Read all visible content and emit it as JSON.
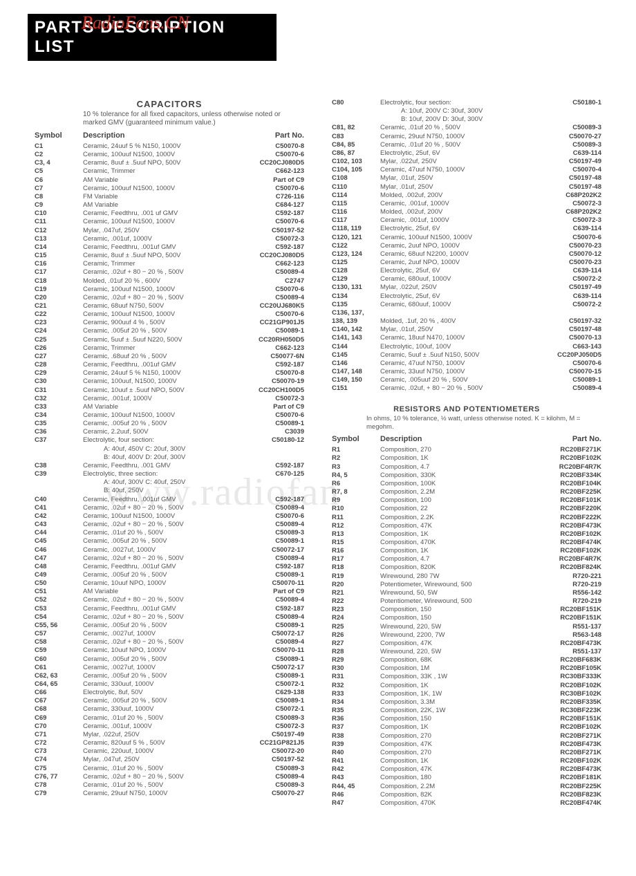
{
  "banner": "PARTS DESCRIPTION LIST",
  "overlay": "RadioFans.CN",
  "watermark": "www.radiofan",
  "capacitors": {
    "heading": "CAPACITORS",
    "note": "10 % tolerance for all fixed capacitors, unless otherwise noted or marked GMV (guaranteed minimum value.)",
    "cols": {
      "sym": "Symbol",
      "desc": "Description",
      "pn": "Part No."
    },
    "left": [
      {
        "s": "C1",
        "d": "Ceramic, 24uuf 5 % N150, 1000V",
        "p": "C50070-8"
      },
      {
        "s": "C2",
        "d": "Ceramic, 100uuf N1500, 1000V",
        "p": "C50070-6"
      },
      {
        "s": "C3, 4",
        "d": "Ceramic, 8uuf ± .5uuf NPO, 500V",
        "p": "CC20CJ080D5"
      },
      {
        "s": "C5",
        "d": "Ceramic, Trimmer",
        "p": "C662-123"
      },
      {
        "s": "C6",
        "d": "AM Variable",
        "p": "Part of C9"
      },
      {
        "s": "C7",
        "d": "Ceramic, 100uuf N1500, 1000V",
        "p": "C50070-6"
      },
      {
        "s": "C8",
        "d": "FM Variable",
        "p": "C726-116"
      },
      {
        "s": "C9",
        "d": "AM Variable",
        "p": "C684-127"
      },
      {
        "s": "C10",
        "d": "Ceramic, Feedthru, .001 uf GMV",
        "p": "C592-187"
      },
      {
        "s": "C11",
        "d": "Ceramic, 100uuf N1500, 1000V",
        "p": "C50070-6"
      },
      {
        "s": "C12",
        "d": "Mylar, .047uf, 250V",
        "p": "C50197-52"
      },
      {
        "s": "C13",
        "d": "Ceramic, .001uf, 1000V",
        "p": "C50072-3"
      },
      {
        "s": "C14",
        "d": "Ceramic, Feedthru, .001uf GMV",
        "p": "C592-187"
      },
      {
        "s": "C15",
        "d": "Ceramic, 8uuf ± .5uuf NPO, 500V",
        "p": "CC20CJ080D5"
      },
      {
        "s": "C16",
        "d": "Ceramic, Trimmer",
        "p": "C662-123"
      },
      {
        "s": "C17",
        "d": "Ceramic, .02uf + 80 − 20 % , 500V",
        "p": "C50089-4"
      },
      {
        "s": "C18",
        "d": "Molded, .01uf 20 % , 600V",
        "p": "C2747"
      },
      {
        "s": "C19",
        "d": "Ceramic, 100uuf N1500, 1000V",
        "p": "C50070-6"
      },
      {
        "s": "C20",
        "d": "Ceramic, .02uf + 80 − 20 % , 500V",
        "p": "C50089-4"
      },
      {
        "s": "C21",
        "d": "Ceramic, 68uuf N750, 500V",
        "p": "CC20UJ680K5"
      },
      {
        "s": "C22",
        "d": "Ceramic, 100uuf N1500, 1000V",
        "p": "C50070-6"
      },
      {
        "s": "C23",
        "d": "Ceramic, 900uuf 4 % , 500V",
        "p": "CC21GP901J5"
      },
      {
        "s": "C24",
        "d": "Ceramic, .005uf 20 % , 500V",
        "p": "C50089-1"
      },
      {
        "s": "C25",
        "d": "Ceramic, 5uuf ± .5uuf N220, 500V",
        "p": "CC20RH050D5"
      },
      {
        "s": "C26",
        "d": "Ceramic, Trimmer",
        "p": "C662-123"
      },
      {
        "s": "C27",
        "d": "Ceramic, .68uuf 20 % , 500V",
        "p": "C50077-6N"
      },
      {
        "s": "C28",
        "d": "Ceramic, Feedthru, .001uf GMV",
        "p": "C592-187"
      },
      {
        "s": "C29",
        "d": "Ceramic, 24uuf 5 % N150, 1000V",
        "p": "C50070-8"
      },
      {
        "s": "C30",
        "d": "Ceramic, 100uuf, N1500, 1000V",
        "p": "C50070-19"
      },
      {
        "s": "C31",
        "d": "Ceramic, 10uuf ± .5uuf NPO, 500V",
        "p": "CC20CH100D5"
      },
      {
        "s": "C32",
        "d": "Ceramic, .001uf, 1000V",
        "p": "C50072-3"
      },
      {
        "s": "C33",
        "d": "AM Variable",
        "p": "Part of C9"
      },
      {
        "s": "C34",
        "d": "Ceramic, 100uuf N1500, 1000V",
        "p": "C50070-6"
      },
      {
        "s": "C35",
        "d": "Ceramic, .005uf 20 % , 500V",
        "p": "C50089-1"
      },
      {
        "s": "C36",
        "d": "Ceramic, 2.2uuf, 500V",
        "p": "C3039"
      },
      {
        "s": "C37",
        "d": "Electrolytic, four section:",
        "p": "C50180-12"
      },
      {
        "s": "",
        "d": "A:   40uf, 450V    C:   20uf, 300V",
        "p": "",
        "sub": true
      },
      {
        "s": "",
        "d": "B:   40uf, 400V    D:   20uf, 300V",
        "p": "",
        "sub": true
      },
      {
        "s": "C38",
        "d": "Ceramic, Feedthru, .001 GMV",
        "p": "C592-187"
      },
      {
        "s": "C39",
        "d": "Electrolytic, three section:",
        "p": "C670-125"
      },
      {
        "s": "",
        "d": "A:   40uf, 300V    C:   40uf, 250V",
        "p": "",
        "sub": true
      },
      {
        "s": "",
        "d": "B:   40uf, 250V",
        "p": "",
        "sub": true
      },
      {
        "s": "C40",
        "d": "Ceramic, Feedthru, .001uf GMV",
        "p": "C592-187"
      },
      {
        "s": "C41",
        "d": "Ceramic, .02uf + 80 − 20 % , 500V",
        "p": "C50089-4"
      },
      {
        "s": "C42",
        "d": "Ceramic, 100uuf N1500, 1000V",
        "p": "C50070-6"
      },
      {
        "s": "C43",
        "d": "Ceramic, .02uf + 80 − 20 % , 500V",
        "p": "C50089-4"
      },
      {
        "s": "C44",
        "d": "Ceramic, .01uf 20 % , 500V",
        "p": "C50089-3"
      },
      {
        "s": "C45",
        "d": "Ceramic, .005uf 20 % , 500V",
        "p": "C50089-1"
      },
      {
        "s": "C46",
        "d": "Ceramic, .0027uf, 1000V",
        "p": "C50072-17"
      },
      {
        "s": "C47",
        "d": "Ceramic, .02uf + 80 − 20 % , 500V",
        "p": "C50089-4"
      },
      {
        "s": "C48",
        "d": "Ceramic, Feedthru, .001uf GMV",
        "p": "C592-187"
      },
      {
        "s": "C49",
        "d": "Ceramic, .005uf 20 % , 500V",
        "p": "C50089-1"
      },
      {
        "s": "C50",
        "d": "Ceramic, 10uuf NPO, 1000V",
        "p": "C50070-11"
      },
      {
        "s": "C51",
        "d": "AM Variable",
        "p": "Part of C9"
      },
      {
        "s": "C52",
        "d": "Ceramic, .02uf + 80 − 20 % , 500V",
        "p": "C50089-4"
      },
      {
        "s": "C53",
        "d": "Ceramic, Feedthru, .001uf GMV",
        "p": "C592-187"
      },
      {
        "s": "C54",
        "d": "Ceramic, .02uf + 80 − 20 % , 500V",
        "p": "C50089-4"
      },
      {
        "s": "C55, 56",
        "d": "Ceramic, .005uf 20 % , 500V",
        "p": "C50089-1"
      },
      {
        "s": "C57",
        "d": "Ceramic, .0027uf, 1000V",
        "p": "C50072-17"
      },
      {
        "s": "C58",
        "d": "Ceramic, .02uf + 80 − 20 % , 500V",
        "p": "C50089-4"
      },
      {
        "s": "C59",
        "d": "Ceramic, 10uuf NPO, 1000V",
        "p": "C50070-11"
      },
      {
        "s": "C60",
        "d": "Ceramic, .005uf 20 % , 500V",
        "p": "C50089-1"
      },
      {
        "s": "C61",
        "d": "Ceramic, .0027uf, 1000V",
        "p": "C50072-17"
      },
      {
        "s": "C62, 63",
        "d": "Ceramic, .005uf 20 % , 500V",
        "p": "C50089-1"
      },
      {
        "s": "C64, 65",
        "d": "Ceramic, 330uuf, 1000V",
        "p": "C50072-1"
      },
      {
        "s": "C66",
        "d": "Electrolytic, 8uf, 50V",
        "p": "C629-138"
      },
      {
        "s": "C67",
        "d": "Ceramic, .005uf 20 % , 500V",
        "p": "C50089-1"
      },
      {
        "s": "C68",
        "d": "Ceramic, 330uuf, 1000V",
        "p": "C50072-1"
      },
      {
        "s": "C69",
        "d": "Ceramic, .01uf 20 % , 500V",
        "p": "C50089-3"
      },
      {
        "s": "C70",
        "d": "Ceramic, .001uf, 1000V",
        "p": "C50072-3"
      },
      {
        "s": "C71",
        "d": "Mylar, .022uf, 250V",
        "p": "C50197-49"
      },
      {
        "s": "C72",
        "d": "Ceramic, 820uuf 5 % , 500V",
        "p": "CC21GP821J5"
      },
      {
        "s": "C73",
        "d": "Ceramic, 220uuf, 1000V",
        "p": "C50072-20"
      },
      {
        "s": "C74",
        "d": "Mylar, .047uf, 250V",
        "p": "C50197-52"
      },
      {
        "s": "C75",
        "d": "Ceramic, .01uf 20 % , 500V",
        "p": "C50089-3"
      },
      {
        "s": "C76, 77",
        "d": "Ceramic, .02uf + 80 − 20 % , 500V",
        "p": "C50089-4"
      },
      {
        "s": "C78",
        "d": "Ceramic, .01uf 20 % , 500V",
        "p": "C50089-3"
      },
      {
        "s": "C79",
        "d": "Ceramic, 29uuf N750, 1000V",
        "p": "C50070-27"
      }
    ],
    "right": [
      {
        "s": "C80",
        "d": "Electrolytic, four section:",
        "p": "C50180-1"
      },
      {
        "s": "",
        "d": "A:   10uf, 200V    C:   30uf, 300V",
        "p": "",
        "sub": true
      },
      {
        "s": "",
        "d": "B:   10uf, 200V    D:   30uf, 300V",
        "p": "",
        "sub": true
      },
      {
        "s": "C81, 82",
        "d": "Ceramic, .01uf 20 % , 500V",
        "p": "C50089-3"
      },
      {
        "s": "C83",
        "d": "Ceramic, 29uuf N750, 1000V",
        "p": "C50070-27"
      },
      {
        "s": "C84, 85",
        "d": "Ceramic, .01uf 20 % , 500V",
        "p": "C50089-3"
      },
      {
        "s": "C86, 87",
        "d": "Electrolytic, 25uf, 6V",
        "p": "C639-114"
      },
      {
        "s": "C102, 103",
        "d": "Mylar, .022uf, 250V",
        "p": "C50197-49"
      },
      {
        "s": "C104, 105",
        "d": "Ceramic, 47uuf N750, 1000V",
        "p": "C50070-4"
      },
      {
        "s": "C108",
        "d": "Mylar, .01uf, 250V",
        "p": "C50197-48"
      },
      {
        "s": "C110",
        "d": "Mylar, .01uf, 250V",
        "p": "C50197-48"
      },
      {
        "s": "C114",
        "d": "Molded, .002uf, 200V",
        "p": "C68P202K2"
      },
      {
        "s": "C115",
        "d": "Ceramic, .001uf, 1000V",
        "p": "C50072-3"
      },
      {
        "s": "C116",
        "d": "Molded, .002uf, 200V",
        "p": "C68P202K2"
      },
      {
        "s": "C117",
        "d": "Ceramic, .001uf, 1000V",
        "p": "C50072-3"
      },
      {
        "s": "C118, 119",
        "d": "Electrolytic, 25uf, 6V",
        "p": "C639-114"
      },
      {
        "s": "C120, 121",
        "d": "Ceramic, 100uuf N1500, 1000V",
        "p": "C50070-6"
      },
      {
        "s": "C122",
        "d": "Ceramic, 2uuf NPO, 1000V",
        "p": "C50070-23"
      },
      {
        "s": "C123, 124",
        "d": "Ceramic, 68uuf N2200, 1000V",
        "p": "C50070-12"
      },
      {
        "s": "C125",
        "d": "Ceramic, 2uuf NPO, 1000V",
        "p": "C50070-23"
      },
      {
        "s": "C128",
        "d": "Electrolytic, 25uf, 6V",
        "p": "C639-114"
      },
      {
        "s": "C129",
        "d": "Ceramic, 680uuf, 1000V",
        "p": "C50072-2"
      },
      {
        "s": "C130, 131",
        "d": "Mylar, .022uf, 250V",
        "p": "C50197-49"
      },
      {
        "s": "C134",
        "d": "Electrolytic, 25uf, 6V",
        "p": "C639-114"
      },
      {
        "s": "C135",
        "d": "Ceramic, 680uuf, 1000V",
        "p": "C50072-2"
      },
      {
        "s": "C136, 137,",
        "d": "",
        "p": ""
      },
      {
        "s": "138, 139",
        "d": "Molded, .1uf, 20 % , 400V",
        "p": "C50197-32"
      },
      {
        "s": "C140, 142",
        "d": "Mylar, .01uf, 250V",
        "p": "C50197-48"
      },
      {
        "s": "C141, 143",
        "d": "Ceramic, 18uuf N470, 1000V",
        "p": "C50070-13"
      },
      {
        "s": "C144",
        "d": "Electrolytic, 100uf, 100V",
        "p": "C663-143"
      },
      {
        "s": "C145",
        "d": "Ceramic, 5uuf ± .5uuf N150, 500V",
        "p": "CC20PJ050D5"
      },
      {
        "s": "C146",
        "d": "Ceramic, 47uuf N750, 1000V",
        "p": "C50070-6"
      },
      {
        "s": "C147, 148",
        "d": "Ceramic, 33uuf N750, 1000V",
        "p": "C50070-15"
      },
      {
        "s": "C149, 150",
        "d": "Ceramic, .005uuf 20 % , 500V",
        "p": "C50089-1"
      },
      {
        "s": "C151",
        "d": "Ceramic, .02uf, + 80 − 20 % , 500V",
        "p": "C50089-4"
      }
    ]
  },
  "resistors": {
    "heading": "RESISTORS AND POTENTIOMETERS",
    "note": "In ohms, 10 % tolerance, ½ watt, unless otherwise noted. K = kilohm, M = megohm.",
    "cols": {
      "sym": "Symbol",
      "desc": "Description",
      "pn": "Part No."
    },
    "rows": [
      {
        "s": "R1",
        "d": "Composition, 270",
        "p": "RC20BF271K"
      },
      {
        "s": "R2",
        "d": "Composition, 1K",
        "p": "RC20BF102K"
      },
      {
        "s": "R3",
        "d": "Composition, 4.7",
        "p": "RC20BF4R7K"
      },
      {
        "s": "R4, 5",
        "d": "Composition, 330K",
        "p": "RC20BF334K"
      },
      {
        "s": "R6",
        "d": "Composition, 100K",
        "p": "RC20BF104K"
      },
      {
        "s": "R7, 8",
        "d": "Composition, 2.2M",
        "p": "RC20BF225K"
      },
      {
        "s": "R9",
        "d": "Composition, 100",
        "p": "RC20BF101K"
      },
      {
        "s": "R10",
        "d": "Composition, 22",
        "p": "RC20BF220K"
      },
      {
        "s": "R11",
        "d": "Composition, 2.2K",
        "p": "RC20BF222K"
      },
      {
        "s": "R12",
        "d": "Composition, 47K",
        "p": "RC20BF473K"
      },
      {
        "s": "R13",
        "d": "Composition, 1K",
        "p": "RC20BF102K"
      },
      {
        "s": "R15",
        "d": "Composition, 470K",
        "p": "RC20BF474K"
      },
      {
        "s": "R16",
        "d": "Composition, 1K",
        "p": "RC20BF102K"
      },
      {
        "s": "R17",
        "d": "Composition, 4.7",
        "p": "RC20BF4R7K"
      },
      {
        "s": "R18",
        "d": "Composition, 820K",
        "p": "RC20BF824K"
      },
      {
        "s": "R19",
        "d": "Wirewound, 280 7W",
        "p": "R720-221"
      },
      {
        "s": "R20",
        "d": "Potentiometer, Wirewound, 500",
        "p": "R720-219"
      },
      {
        "s": "R21",
        "d": "Wirewound, 50, 5W",
        "p": "R556-142"
      },
      {
        "s": "R22",
        "d": "Potentiometer, Wirewound, 500",
        "p": "R720-219"
      },
      {
        "s": "R23",
        "d": "Composition, 150",
        "p": "RC20BF151K"
      },
      {
        "s": "R24",
        "d": "Composition, 150",
        "p": "RC20BF151K"
      },
      {
        "s": "R25",
        "d": "Wirewound, 220, 5W",
        "p": "R551-137"
      },
      {
        "s": "R26",
        "d": "Wirewound, 2200, 7W",
        "p": "R563-148"
      },
      {
        "s": "R27",
        "d": "Composition, 47K",
        "p": "RC20BF473K"
      },
      {
        "s": "R28",
        "d": "Wirewound, 220, 5W",
        "p": "R551-137"
      },
      {
        "s": "R29",
        "d": "Composition, 68K",
        "p": "RC20BF683K"
      },
      {
        "s": "R30",
        "d": "Composition, 1M",
        "p": "RC20BF105K"
      },
      {
        "s": "R31",
        "d": "Composition, 33K , 1W",
        "p": "RC30BF333K"
      },
      {
        "s": "R32",
        "d": "Composition, 1K",
        "p": "RC20BF102K"
      },
      {
        "s": "R33",
        "d": "Composition, 1K, 1W",
        "p": "RC30BF102K"
      },
      {
        "s": "R34",
        "d": "Composition, 3.3M",
        "p": "RC20BF335K"
      },
      {
        "s": "R35",
        "d": "Composition, 22K, 1W",
        "p": "RC30BF223K"
      },
      {
        "s": "R36",
        "d": "Composition, 150",
        "p": "RC20BF151K"
      },
      {
        "s": "R37",
        "d": "Composition, 1K",
        "p": "RC20BF102K"
      },
      {
        "s": "R38",
        "d": "Composition, 270",
        "p": "RC20BF271K"
      },
      {
        "s": "R39",
        "d": "Composition, 47K",
        "p": "RC20BF473K"
      },
      {
        "s": "R40",
        "d": "Composition, 270",
        "p": "RC20BF271K"
      },
      {
        "s": "R41",
        "d": "Composition, 1K",
        "p": "RC20BF102K"
      },
      {
        "s": "R42",
        "d": "Composition, 47K",
        "p": "RC20BF473K"
      },
      {
        "s": "R43",
        "d": "Composition, 180",
        "p": "RC20BF181K"
      },
      {
        "s": "R44, 45",
        "d": "Composition, 2.2M",
        "p": "RC20BF225K"
      },
      {
        "s": "R46",
        "d": "Composition, 82K",
        "p": "RC20BF823K"
      },
      {
        "s": "R47",
        "d": "Composition, 470K",
        "p": "RC20BF474K"
      }
    ]
  }
}
